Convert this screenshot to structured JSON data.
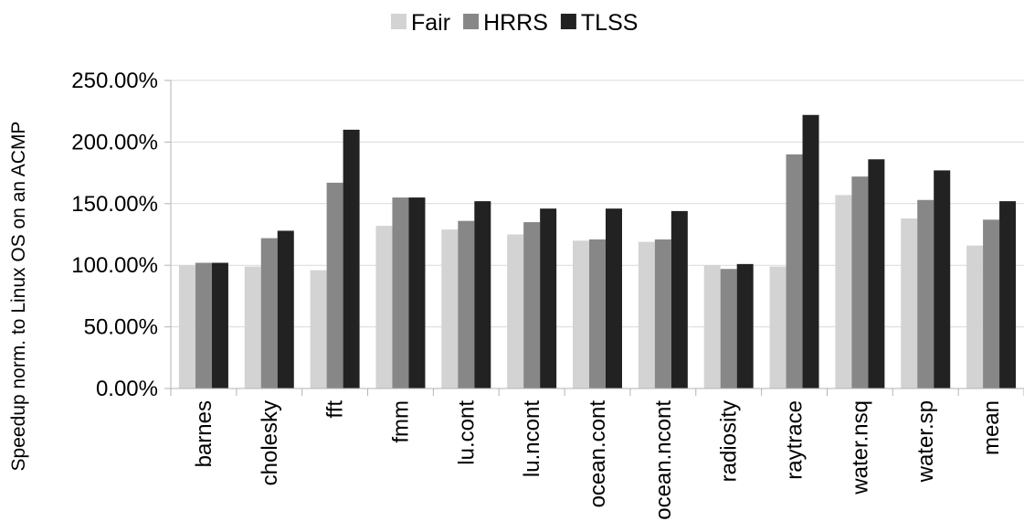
{
  "chart_data": {
    "type": "bar",
    "ylabel": "Speedup norm. to Linux OS on an ACMP",
    "xlabel": "",
    "ylim": [
      0,
      250
    ],
    "yticks": [
      0,
      50,
      100,
      150,
      200,
      250
    ],
    "ytick_labels": [
      "0.00%",
      "50.00%",
      "100.00%",
      "150.00%",
      "200.00%",
      "250.00%"
    ],
    "grid": true,
    "legend_position": "top-center",
    "categories": [
      "barnes",
      "cholesky",
      "fft",
      "fmm",
      "lu.cont",
      "lu.ncont",
      "ocean.cont",
      "ocean.ncont",
      "radiosity",
      "raytrace",
      "water.nsq",
      "water.sp",
      "mean"
    ],
    "series": [
      {
        "name": "Fair",
        "color": "#d3d3d3",
        "values": [
          100,
          99,
          96,
          132,
          129,
          125,
          120,
          119,
          100,
          99,
          157,
          138,
          116
        ]
      },
      {
        "name": "HRRS",
        "color": "#878787",
        "values": [
          102,
          122,
          167,
          155,
          136,
          135,
          121,
          121,
          97,
          190,
          172,
          153,
          137
        ]
      },
      {
        "name": "TLSS",
        "color": "#222222",
        "values": [
          102,
          128,
          210,
          155,
          152,
          146,
          146,
          144,
          101,
          222,
          186,
          177,
          152
        ]
      }
    ]
  }
}
